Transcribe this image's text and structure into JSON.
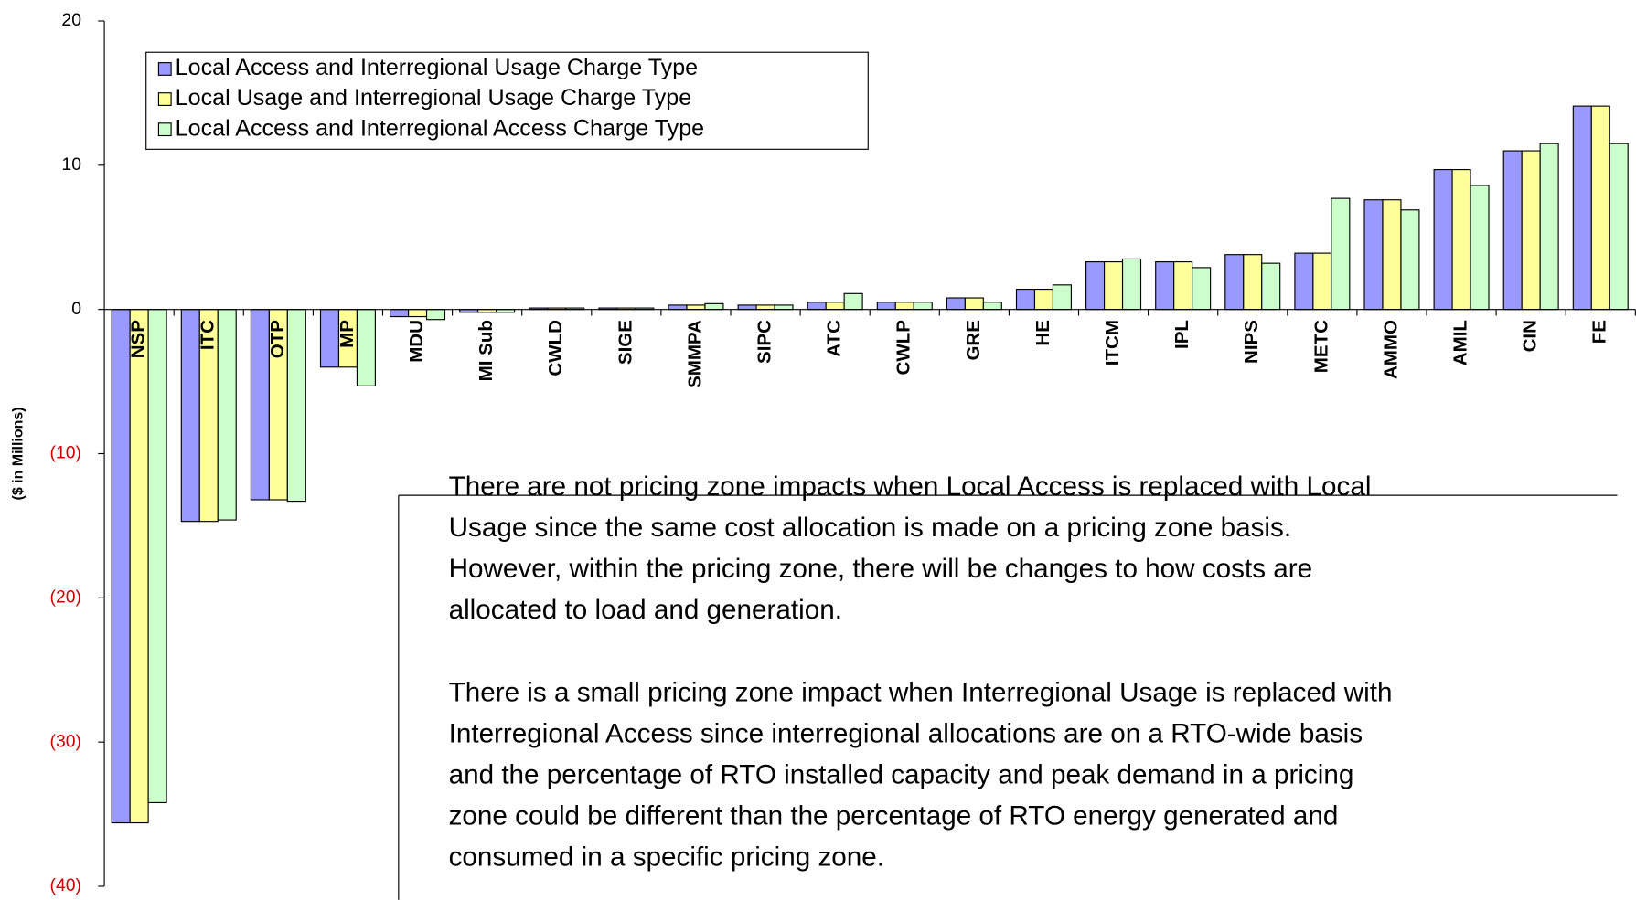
{
  "chart_data": {
    "type": "bar",
    "y_label": "($ in Millions)",
    "categories": [
      "NSP",
      "ITC",
      "OTP",
      "MP",
      "MDU",
      "MI Sub",
      "CWLD",
      "SIGE",
      "SMMPA",
      "SIPC",
      "ATC",
      "CWLP",
      "GRE",
      "HE",
      "ITCM",
      "IPL",
      "NIPS",
      "METC",
      "AMMO",
      "AMIL",
      "CIN",
      "FE"
    ],
    "series": [
      {
        "name": "Local Access and Interregional Usage Charge Type",
        "color": "#9999ff",
        "values": [
          -35.6,
          -14.7,
          -13.2,
          -4.0,
          -0.5,
          -0.2,
          0.1,
          0.1,
          0.3,
          0.3,
          0.5,
          0.5,
          0.8,
          1.4,
          3.3,
          3.3,
          3.8,
          3.9,
          7.6,
          9.7,
          11.0,
          14.1
        ]
      },
      {
        "name": "Local Usage and Interregional Usage Charge Type",
        "color": "#ffff99",
        "values": [
          -35.6,
          -14.7,
          -13.2,
          -4.0,
          -0.5,
          -0.2,
          0.1,
          0.1,
          0.3,
          0.3,
          0.5,
          0.5,
          0.8,
          1.4,
          3.3,
          3.3,
          3.8,
          3.9,
          7.6,
          9.7,
          11.0,
          14.1
        ]
      },
      {
        "name": "Local Access and Interregional Access Charge Type",
        "color": "#ccffcc",
        "values": [
          -34.2,
          -14.6,
          -13.3,
          -5.3,
          -0.7,
          -0.2,
          0.1,
          0.1,
          0.4,
          0.3,
          1.1,
          0.5,
          0.5,
          1.7,
          3.5,
          2.9,
          3.2,
          7.7,
          6.9,
          8.6,
          11.5,
          11.5
        ]
      }
    ],
    "ylim": [
      -40,
      20
    ],
    "yticks": [
      {
        "value": -40,
        "label": "(40)"
      },
      {
        "value": -30,
        "label": "(30)"
      },
      {
        "value": -20,
        "label": "(20)"
      },
      {
        "value": -10,
        "label": "(10)"
      },
      0,
      10,
      20
    ],
    "legend": "upper left",
    "annotation": [
      [
        "There are not pricing zone impacts when Local Access is replaced with Local",
        "Usage since the same cost allocation is made on a pricing zone basis.",
        "However, within the pricing zone, there will be changes to how costs are",
        "allocated to load and generation."
      ],
      [
        "There is a small pricing zone impact when Interregional Usage is replaced with",
        "Interregional Access since interregional allocations are on a RTO-wide basis",
        "and the percentage of RTO installed capacity and peak demand in a pricing",
        "zone could be different than the percentage of RTO energy generated and",
        "consumed in a specific pricing zone."
      ]
    ]
  }
}
